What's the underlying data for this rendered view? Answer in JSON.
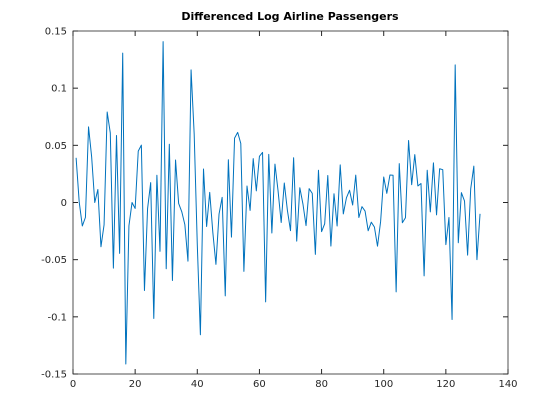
{
  "chart_data": {
    "type": "line",
    "title": "Differenced Log Airline Passengers",
    "x": [
      1,
      2,
      3,
      4,
      5,
      6,
      7,
      8,
      9,
      10,
      11,
      12,
      13,
      14,
      15,
      16,
      17,
      18,
      19,
      20,
      21,
      22,
      23,
      24,
      25,
      26,
      27,
      28,
      29,
      30,
      31,
      32,
      33,
      34,
      35,
      36,
      37,
      38,
      39,
      40,
      41,
      42,
      43,
      44,
      45,
      46,
      47,
      48,
      49,
      50,
      51,
      52,
      53,
      54,
      55,
      56,
      57,
      58,
      59,
      60,
      61,
      62,
      63,
      64,
      65,
      66,
      67,
      68,
      69,
      70,
      71,
      72,
      73,
      74,
      75,
      76,
      77,
      78,
      79,
      80,
      81,
      82,
      83,
      84,
      85,
      86,
      87,
      88,
      89,
      90,
      91,
      92,
      93,
      94,
      95,
      96,
      97,
      98,
      99,
      100,
      101,
      102,
      103,
      104,
      105,
      106,
      107,
      108,
      109,
      110,
      111,
      112,
      113,
      114,
      115,
      116,
      117,
      118,
      119,
      120,
      121,
      122,
      123,
      124,
      125,
      126,
      127,
      128,
      129,
      130,
      131
    ],
    "series": [
      {
        "color": "#0072bd",
        "values": [
          0.0391,
          0.0004,
          -0.0205,
          -0.013,
          0.0661,
          0.04,
          0,
          0.0114,
          -0.0387,
          -0.0195,
          0.0791,
          0.0609,
          -0.0574,
          0.0586,
          -0.0445,
          0.1307,
          -0.1413,
          -0.0204,
          0,
          -0.0052,
          0.0449,
          0.0502,
          -0.077,
          -0.0054,
          0.0174,
          -0.1014,
          0.0238,
          -0.0427,
          0.1407,
          -0.0579,
          0.0509,
          -0.0682,
          0.0372,
          -0.0008,
          -0.008,
          -0.0194,
          -0.0513,
          0.116,
          0.0599,
          -0.0369,
          -0.1157,
          0.0293,
          -0.021,
          0.0089,
          -0.0261,
          -0.0541,
          -0.0101,
          0.0045,
          -0.0817,
          0.0374,
          -0.0303,
          0.0563,
          0.0613,
          0.0516,
          -0.0602,
          0.0144,
          -0.0069,
          0.0384,
          0.0102,
          0.0404,
          0.0438,
          -0.0869,
          0.0421,
          -0.0267,
          0.0336,
          0.0101,
          -0.0175,
          0.017,
          -0.0068,
          -0.0246,
          0.0391,
          -0.0338,
          0.0129,
          -0.0013,
          -0.0202,
          0.0121,
          0.008,
          -0.0454,
          0.0282,
          -0.0255,
          -0.0186,
          0.0236,
          -0.0381,
          0.0076,
          -0.0205,
          0.0329,
          -0.01,
          0.0041,
          0.0107,
          -0.0022,
          0.0239,
          -0.0131,
          -0.0036,
          -0.0075,
          -0.0247,
          -0.0172,
          -0.0214,
          -0.0382,
          -0.0167,
          0.0223,
          0.008,
          0.0241,
          0.0238,
          -0.0782,
          0.034,
          -0.0177,
          -0.0133,
          0.0542,
          0.0156,
          0.0419,
          0.0145,
          0.0166,
          -0.0642,
          0.0282,
          -0.0082,
          0.0347,
          -0.0108,
          0.0295,
          0.0287,
          -0.0368,
          -0.0131,
          -0.1023,
          0.1204,
          -0.0352,
          0.0086,
          0.0014,
          -0.046,
          0.012,
          0.0318,
          -0.05,
          -0.0099
        ]
      }
    ],
    "xlim": [
      0,
      140
    ],
    "xticks": [
      0,
      20,
      40,
      60,
      80,
      100,
      120,
      140
    ],
    "ylim": [
      -0.15,
      0.15
    ],
    "yticks": [
      -0.15,
      -0.1,
      -0.05,
      0,
      0.05,
      0.1,
      0.15
    ]
  }
}
